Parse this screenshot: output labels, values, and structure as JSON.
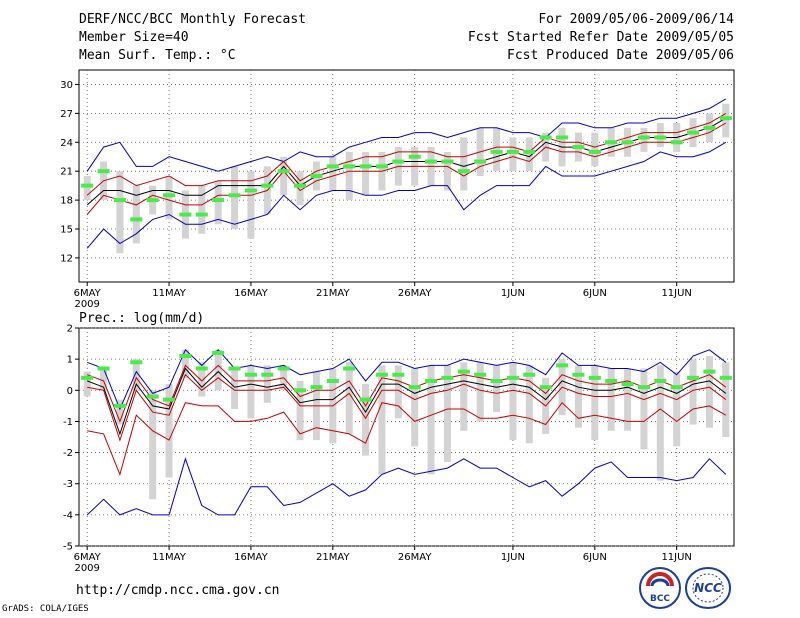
{
  "header": {
    "title": "DERF/NCC/BCC Monthly Forecast",
    "member_size": "Member Size=40",
    "variable": "Mean Surf. Temp.: °C",
    "period": "For 2009/05/06-2009/06/14",
    "start_date": "Fcst Started Refer Date 2009/05/05",
    "produced_date": "Fcst Produced Date 2009/05/06"
  },
  "footer": {
    "url": "http://cmdp.ncc.cma.gov.cn",
    "credit": "GrADS: COLA/IGES",
    "logo1_text": "BCC",
    "logo2_text": "NCC"
  },
  "colors": {
    "envelope": "#0000cc",
    "spread": "#cc0000",
    "mean": "#000000",
    "obs": "#44ee44",
    "bar": "#d3d3d3",
    "grid": "#555555"
  },
  "chart_data": [
    {
      "type": "line",
      "title": "Mean Surf. Temp.: °C",
      "x_ticks": [
        "6MAY",
        "11MAY",
        "16MAY",
        "21MAY",
        "26MAY",
        "1JUN",
        "6JUN",
        "11JUN"
      ],
      "x_tick_days": [
        0,
        5,
        10,
        15,
        20,
        26,
        31,
        36
      ],
      "x_year": "2009",
      "xlim": [
        -0.5,
        39.5
      ],
      "ylim": [
        9.5,
        31.5
      ],
      "yticks": [
        12,
        15,
        18,
        21,
        24,
        27,
        30
      ],
      "ytick_labels": [
        "12",
        "15",
        "18",
        "21",
        "24",
        "27",
        "30"
      ],
      "series": [
        {
          "name": "max",
          "values": [
            21.0,
            23.5,
            24.0,
            21.5,
            21.5,
            22.5,
            22.0,
            21.5,
            21.0,
            21.5,
            22.0,
            22.5,
            22.0,
            23.0,
            22.5,
            22.5,
            23.5,
            24.0,
            24.5,
            24.5,
            25.0,
            25.0,
            24.5,
            25.0,
            25.5,
            25.5,
            25.0,
            25.0,
            24.5,
            26.0,
            26.0,
            25.5,
            25.5,
            26.0,
            26.0,
            26.5,
            26.5,
            27.0,
            27.5,
            28.5
          ]
        },
        {
          "name": "upper",
          "values": [
            18.5,
            20.0,
            20.5,
            19.5,
            20.0,
            20.5,
            19.5,
            19.5,
            20.0,
            20.0,
            20.0,
            20.5,
            22.0,
            20.0,
            21.0,
            21.5,
            22.0,
            22.5,
            22.5,
            23.0,
            23.0,
            23.0,
            22.5,
            22.5,
            23.0,
            23.5,
            23.5,
            23.0,
            24.5,
            24.0,
            24.0,
            23.5,
            24.0,
            24.5,
            25.0,
            25.0,
            25.0,
            25.5,
            26.0,
            27.0
          ]
        },
        {
          "name": "mean",
          "values": [
            17.5,
            19.0,
            19.0,
            18.5,
            19.0,
            19.0,
            18.5,
            18.5,
            19.5,
            19.5,
            19.5,
            19.5,
            21.5,
            19.5,
            20.5,
            21.0,
            21.5,
            21.5,
            21.5,
            22.0,
            22.0,
            22.0,
            22.0,
            21.5,
            22.0,
            22.5,
            23.0,
            22.5,
            24.0,
            23.5,
            23.5,
            23.0,
            23.5,
            24.0,
            24.5,
            24.5,
            24.5,
            25.0,
            25.5,
            26.5
          ]
        },
        {
          "name": "lower",
          "values": [
            16.5,
            18.5,
            18.0,
            17.5,
            18.5,
            18.0,
            17.5,
            17.5,
            18.5,
            18.5,
            18.5,
            19.0,
            21.0,
            19.0,
            20.0,
            20.5,
            21.0,
            21.0,
            21.0,
            21.5,
            21.5,
            21.5,
            21.5,
            20.5,
            21.5,
            22.0,
            22.5,
            22.0,
            23.5,
            23.0,
            23.0,
            22.5,
            23.0,
            23.5,
            24.0,
            24.0,
            24.0,
            24.5,
            25.0,
            26.0
          ]
        },
        {
          "name": "min",
          "values": [
            13.0,
            15.0,
            13.5,
            14.5,
            16.0,
            16.5,
            15.5,
            15.5,
            16.0,
            15.5,
            16.0,
            16.5,
            18.5,
            17.0,
            18.5,
            19.0,
            19.0,
            18.5,
            18.5,
            19.0,
            19.0,
            19.5,
            19.5,
            17.0,
            18.5,
            19.5,
            19.5,
            19.5,
            21.5,
            20.5,
            20.5,
            20.5,
            21.0,
            21.5,
            22.0,
            23.0,
            22.5,
            22.5,
            23.0,
            24.0
          ]
        },
        {
          "name": "obs",
          "values": [
            19.5,
            21.0,
            18.0,
            16.0,
            18.0,
            18.5,
            16.5,
            16.5,
            18.0,
            18.5,
            19.0,
            19.5,
            21.0,
            19.5,
            20.5,
            21.5,
            21.5,
            21.5,
            21.5,
            22.0,
            22.5,
            22.0,
            22.0,
            21.0,
            22.0,
            23.0,
            23.0,
            23.0,
            24.5,
            24.5,
            23.5,
            23.0,
            24.0,
            24.0,
            24.5,
            24.5,
            24.0,
            25.0,
            25.5,
            26.5
          ]
        },
        {
          "name": "bar_lo",
          "values": [
            18.0,
            18.0,
            12.5,
            13.5,
            16.5,
            16.0,
            14.0,
            14.5,
            15.5,
            15.0,
            14.0,
            16.5,
            18.5,
            17.5,
            19.0,
            19.0,
            18.0,
            18.5,
            19.0,
            19.5,
            19.5,
            19.5,
            19.0,
            19.0,
            20.5,
            21.0,
            21.0,
            21.0,
            22.0,
            21.5,
            22.0,
            21.5,
            22.5,
            22.5,
            23.0,
            23.5,
            23.0,
            23.5,
            24.0,
            24.5
          ]
        },
        {
          "name": "bar_hi",
          "values": [
            20.5,
            22.0,
            21.0,
            19.5,
            19.5,
            20.5,
            19.0,
            19.5,
            20.0,
            21.5,
            21.0,
            21.5,
            22.5,
            21.0,
            22.0,
            22.5,
            23.0,
            23.0,
            23.0,
            23.5,
            23.5,
            23.5,
            23.0,
            24.5,
            25.5,
            25.5,
            24.5,
            24.5,
            25.0,
            25.5,
            25.0,
            25.0,
            25.5,
            25.5,
            25.5,
            26.0,
            26.0,
            26.5,
            27.0,
            28.0
          ]
        }
      ]
    },
    {
      "type": "line",
      "title": "Prec.: log(mm/d)",
      "x_ticks": [
        "6MAY",
        "11MAY",
        "16MAY",
        "21MAY",
        "26MAY",
        "1JUN",
        "6JUN",
        "11JUN"
      ],
      "x_tick_days": [
        0,
        5,
        10,
        15,
        20,
        26,
        31,
        36
      ],
      "x_year": "2009",
      "xlim": [
        -0.5,
        39.5
      ],
      "ylim": [
        -5,
        2
      ],
      "yticks": [
        -5,
        -4,
        -3,
        -2,
        -1,
        0,
        1,
        2
      ],
      "ytick_labels": [
        "-5",
        "-4",
        "-3",
        "-2",
        "-1",
        "0",
        "1",
        "2"
      ],
      "series": [
        {
          "name": "max",
          "values": [
            0.9,
            0.7,
            -0.6,
            0.6,
            -0.1,
            0.1,
            1.3,
            0.8,
            1.3,
            0.7,
            0.8,
            0.7,
            0.8,
            0.5,
            0.6,
            0.7,
            1.0,
            0.3,
            0.9,
            0.9,
            0.7,
            0.8,
            0.8,
            1.0,
            0.9,
            0.8,
            0.9,
            0.8,
            0.5,
            1.2,
            0.8,
            0.8,
            0.7,
            0.7,
            0.6,
            0.9,
            0.5,
            1.1,
            1.3,
            0.9
          ]
        },
        {
          "name": "upper",
          "values": [
            0.5,
            0.3,
            -1.0,
            0.4,
            -0.3,
            -0.5,
            0.8,
            0.3,
            0.8,
            0.3,
            0.3,
            0.3,
            0.4,
            -0.2,
            0.0,
            0.0,
            0.3,
            -0.5,
            0.4,
            0.3,
            0.1,
            0.3,
            0.4,
            0.5,
            0.4,
            0.3,
            0.4,
            0.3,
            -0.1,
            0.5,
            0.3,
            0.2,
            0.2,
            0.3,
            0.1,
            0.3,
            0.1,
            0.3,
            0.5,
            0.1
          ]
        },
        {
          "name": "mean",
          "values": [
            0.3,
            0.1,
            -1.4,
            0.2,
            -0.5,
            -0.6,
            0.7,
            0.1,
            0.6,
            0.1,
            0.2,
            0.1,
            0.2,
            -0.4,
            -0.3,
            -0.3,
            0.1,
            -0.7,
            0.2,
            0.2,
            -0.1,
            0.1,
            0.2,
            0.3,
            0.2,
            0.1,
            0.2,
            0.1,
            -0.3,
            0.3,
            0.1,
            0.0,
            0.0,
            0.1,
            -0.1,
            0.1,
            -0.1,
            0.2,
            0.3,
            -0.1
          ]
        },
        {
          "name": "lower",
          "values": [
            0.1,
            0.0,
            -1.6,
            0.0,
            -0.7,
            -0.8,
            0.5,
            0.0,
            0.4,
            0.0,
            0.0,
            0.0,
            0.1,
            -0.5,
            -0.5,
            -0.5,
            -0.1,
            -0.9,
            0.0,
            0.0,
            -0.3,
            -0.1,
            0.0,
            0.2,
            0.0,
            -0.1,
            0.0,
            -0.1,
            -0.5,
            0.1,
            -0.1,
            -0.2,
            -0.2,
            -0.1,
            -0.3,
            -0.1,
            -0.3,
            0.0,
            0.1,
            -0.3
          ]
        },
        {
          "name": "min",
          "values": [
            -1.3,
            -1.4,
            -2.7,
            -0.8,
            -1.3,
            -1.6,
            -0.4,
            -0.5,
            -0.5,
            -1.0,
            -1.0,
            -0.9,
            -0.7,
            -1.4,
            -1.2,
            -1.3,
            -1.4,
            -1.7,
            -0.4,
            -0.5,
            -1.0,
            -0.8,
            -0.6,
            -0.6,
            -0.9,
            -0.9,
            -0.8,
            -0.9,
            -1.1,
            -0.4,
            -0.9,
            -0.8,
            -0.9,
            -1.0,
            -1.0,
            -0.6,
            -1.0,
            -0.6,
            -0.5,
            -0.8
          ]
        },
        {
          "name": "min_envelope",
          "values": [
            -4.0,
            -3.5,
            -4.0,
            -3.8,
            -4.0,
            -4.0,
            -2.2,
            -3.7,
            -4.0,
            -4.0,
            -3.1,
            -3.1,
            -3.7,
            -3.6,
            -3.3,
            -3.0,
            -3.4,
            -3.2,
            -2.7,
            -2.5,
            -2.7,
            -2.6,
            -2.5,
            -2.2,
            -2.5,
            -2.5,
            -2.8,
            -3.1,
            -2.9,
            -3.4,
            -3.0,
            -2.5,
            -2.3,
            -2.8,
            -2.8,
            -2.8,
            -2.9,
            -2.8,
            -2.2,
            -2.7
          ]
        },
        {
          "name": "obs",
          "values": [
            0.4,
            0.7,
            -0.5,
            0.9,
            -0.2,
            -0.3,
            1.1,
            0.7,
            1.2,
            0.7,
            0.5,
            0.5,
            0.7,
            0.0,
            0.1,
            0.3,
            0.7,
            -0.3,
            0.5,
            0.5,
            0.1,
            0.3,
            0.4,
            0.6,
            0.5,
            0.3,
            0.4,
            0.5,
            0.1,
            0.8,
            0.5,
            0.4,
            0.3,
            0.2,
            0.1,
            0.3,
            0.1,
            0.4,
            0.6,
            0.4
          ]
        },
        {
          "name": "bar_lo",
          "values": [
            -0.2,
            0.0,
            -1.1,
            0.0,
            -3.5,
            -2.8,
            0.4,
            -0.2,
            0.0,
            -0.6,
            -0.9,
            -0.4,
            0.0,
            -1.6,
            -1.6,
            -1.7,
            -1.4,
            -2.1,
            -2.7,
            -0.9,
            -1.8,
            -2.7,
            -2.3,
            -1.3,
            -1.0,
            -0.7,
            -1.6,
            -1.7,
            -1.4,
            -0.8,
            -1.2,
            -1.6,
            -1.3,
            -1.3,
            -1.9,
            -2.9,
            -1.8,
            -1.1,
            -1.2,
            -1.5
          ]
        },
        {
          "name": "bar_hi",
          "values": [
            0.6,
            0.7,
            -0.3,
            1.0,
            0.0,
            0.2,
            1.3,
            0.9,
            1.3,
            0.7,
            0.8,
            0.8,
            0.8,
            0.3,
            0.6,
            0.7,
            0.9,
            0.2,
            0.8,
            0.8,
            0.7,
            0.8,
            0.8,
            0.9,
            0.9,
            0.8,
            0.9,
            0.8,
            0.4,
            1.0,
            0.8,
            0.8,
            0.7,
            0.7,
            0.7,
            0.8,
            0.6,
            1.0,
            1.1,
            0.9
          ]
        }
      ]
    }
  ]
}
